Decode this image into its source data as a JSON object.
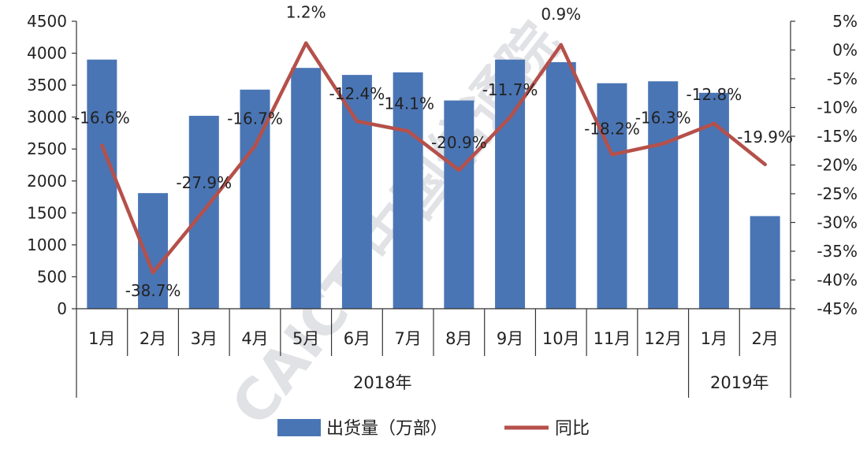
{
  "chart_data": {
    "type": "bar+line",
    "categories": [
      "1月",
      "2月",
      "3月",
      "4月",
      "5月",
      "6月",
      "7月",
      "8月",
      "9月",
      "10月",
      "11月",
      "12月",
      "1月",
      "2月"
    ],
    "groups": [
      {
        "label": "2018年",
        "count": 12
      },
      {
        "label": "2019年",
        "count": 2
      }
    ],
    "series": [
      {
        "name": "出货量（万部）",
        "type": "bar",
        "axis": "left",
        "color": "#4A75B5",
        "values": [
          3900,
          1810,
          3020,
          3430,
          3770,
          3660,
          3700,
          3260,
          3900,
          3860,
          3530,
          3560,
          3380,
          1450
        ]
      },
      {
        "name": "同比",
        "type": "line",
        "axis": "right",
        "color": "#B5504A",
        "values": [
          -16.6,
          -38.7,
          -27.9,
          -16.7,
          1.2,
          -12.4,
          -14.1,
          -20.9,
          -11.7,
          0.9,
          -18.2,
          -16.3,
          -12.8,
          -19.9
        ],
        "labels": [
          "-16.6%",
          "-38.7%",
          "-27.9%",
          "-16.7%",
          "1.2%",
          "-12.4%",
          "-14.1%",
          "-20.9%",
          "-11.7%",
          "0.9%",
          "-18.2%",
          "-16.3%",
          "-12.8%",
          "-19.9%"
        ]
      }
    ],
    "left_axis": {
      "min": 0,
      "max": 4500,
      "step": 500,
      "ticks": [
        "0",
        "500",
        "1000",
        "1500",
        "2000",
        "2500",
        "3000",
        "3500",
        "4000",
        "4500"
      ]
    },
    "right_axis": {
      "min": -45,
      "max": 5,
      "step": 5,
      "ticks": [
        "-45%",
        "-40%",
        "-35%",
        "-30%",
        "-25%",
        "-20%",
        "-15%",
        "-10%",
        "-5%",
        "0%",
        "5%"
      ]
    },
    "legend": {
      "position": "bottom",
      "items": [
        "出货量（万部）",
        "同比"
      ]
    },
    "grid": false
  },
  "watermark": {
    "text": "CAICT 中国信通院"
  }
}
